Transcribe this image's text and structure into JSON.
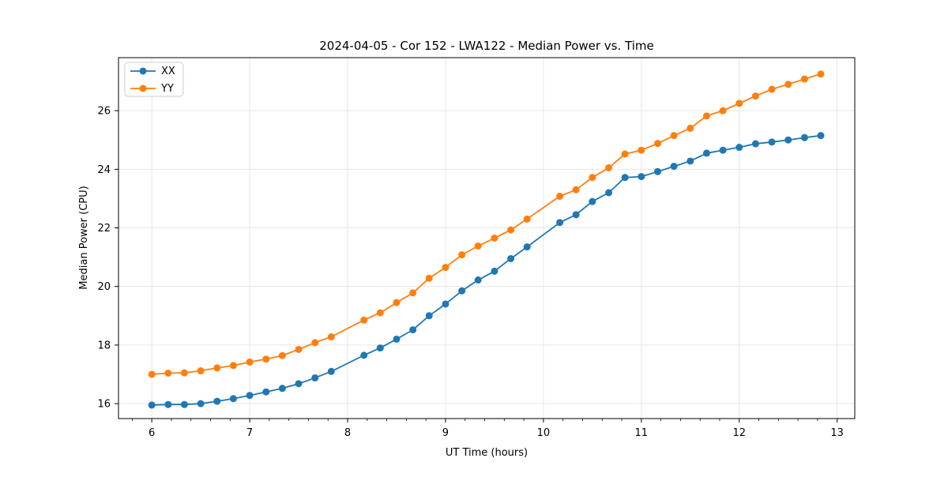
{
  "page": {
    "background": "#ffffff"
  },
  "chart_data": {
    "type": "line",
    "title": "2024-04-05 - Cor 152 - LWA122 - Median Power vs. Time",
    "xlabel": "UT Time (hours)",
    "ylabel": "Median Power (CPU)",
    "xlim": [
      5.66,
      13.18
    ],
    "ylim": [
      15.49,
      27.81
    ],
    "x_ticks": [
      6,
      7,
      8,
      9,
      10,
      11,
      12,
      13
    ],
    "y_ticks": [
      16,
      18,
      20,
      22,
      24,
      26
    ],
    "x_minor_step": 0.2,
    "grid": true,
    "grid_color": "#e6e6e6",
    "legend_position": "upper-left",
    "note_gaps": "samples every 10 minutes; missing samples at 8.000 and 10.000",
    "x": [
      6.0,
      6.167,
      6.333,
      6.5,
      6.667,
      6.833,
      7.0,
      7.167,
      7.333,
      7.5,
      7.667,
      7.833,
      8.167,
      8.333,
      8.5,
      8.667,
      8.833,
      9.0,
      9.167,
      9.333,
      9.5,
      9.667,
      9.833,
      10.167,
      10.333,
      10.5,
      10.667,
      10.833,
      11.0,
      11.167,
      11.333,
      11.5,
      11.667,
      11.833,
      12.0,
      12.167,
      12.333,
      12.5,
      12.667,
      12.833
    ],
    "series": [
      {
        "name": "XX",
        "color": "#1f77b4",
        "values": [
          15.95,
          15.97,
          15.97,
          16.0,
          16.08,
          16.17,
          16.28,
          16.4,
          16.52,
          16.68,
          16.88,
          17.1,
          17.65,
          17.9,
          18.2,
          18.52,
          19.0,
          19.4,
          19.85,
          20.22,
          20.52,
          20.95,
          21.35,
          22.18,
          22.45,
          22.9,
          23.2,
          23.72,
          23.75,
          23.92,
          24.1,
          24.28,
          24.55,
          24.65,
          24.75,
          24.87,
          24.93,
          25.0,
          25.08,
          25.15
        ]
      },
      {
        "name": "YY",
        "color": "#ff7f0e",
        "values": [
          17.0,
          17.04,
          17.05,
          17.12,
          17.22,
          17.3,
          17.42,
          17.52,
          17.64,
          17.85,
          18.08,
          18.28,
          18.85,
          19.1,
          19.45,
          19.78,
          20.28,
          20.65,
          21.08,
          21.38,
          21.65,
          21.93,
          22.3,
          23.08,
          23.3,
          23.72,
          24.05,
          24.52,
          24.65,
          24.88,
          25.15,
          25.4,
          25.82,
          26.0,
          26.25,
          26.5,
          26.73,
          26.9,
          27.08,
          27.25
        ]
      }
    ]
  }
}
